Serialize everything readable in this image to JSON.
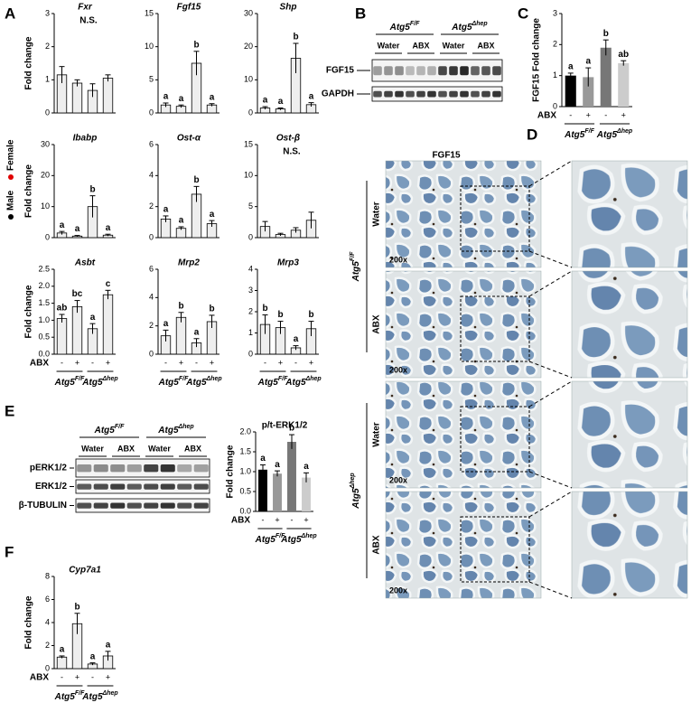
{
  "panels": [
    "A",
    "B",
    "C",
    "D",
    "E",
    "F"
  ],
  "legend": {
    "female": "Female",
    "male": "Male",
    "female_color": "#e00000",
    "male_color": "#000000"
  },
  "xaxis": {
    "abx": "ABX",
    "abx_labels": [
      "-",
      "+",
      "-",
      "+"
    ],
    "groups": [
      {
        "gene": "Atg5",
        "sup": "F/F"
      },
      {
        "gene": "Atg5",
        "sup": "Δhep"
      }
    ]
  },
  "chart_data": [
    {
      "type": "bar",
      "title": "Fxr",
      "italic": true,
      "ylabel": "Fold change",
      "ylim": [
        0,
        3
      ],
      "yticks": [
        0,
        1,
        2,
        3
      ],
      "values": [
        1.15,
        0.9,
        0.68,
        1.05
      ],
      "errors": [
        0.25,
        0.1,
        0.2,
        0.1
      ],
      "annotation": "N.S.",
      "colors": [
        "#eeeeee",
        "#eeeeee",
        "#eeeeee",
        "#eeeeee"
      ],
      "stroke": "#000000"
    },
    {
      "type": "bar",
      "title": "Fgf15",
      "italic": true,
      "ylim": [
        0,
        15
      ],
      "yticks": [
        0,
        5,
        10,
        15
      ],
      "values": [
        1.2,
        1.0,
        7.5,
        1.2
      ],
      "errors": [
        0.3,
        0.2,
        1.8,
        0.2
      ],
      "annotations": [
        "a",
        "a",
        "b",
        "a"
      ],
      "colors": [
        "#eeeeee",
        "#eeeeee",
        "#eeeeee",
        "#eeeeee"
      ],
      "stroke": "#000000"
    },
    {
      "type": "bar",
      "title": "Shp",
      "italic": true,
      "ylim": [
        0,
        30
      ],
      "yticks": [
        0,
        10,
        20,
        30
      ],
      "values": [
        1.5,
        1.2,
        16.5,
        2.5
      ],
      "errors": [
        0.4,
        0.3,
        4.5,
        0.6
      ],
      "annotations": [
        "a",
        "a",
        "b",
        "a"
      ],
      "colors": [
        "#eeeeee",
        "#eeeeee",
        "#eeeeee",
        "#eeeeee"
      ],
      "stroke": "#000000"
    },
    {
      "type": "bar",
      "title": "Ibabp",
      "italic": true,
      "ylabel": "Fold change",
      "ylim": [
        0,
        30
      ],
      "yticks": [
        0,
        10,
        20,
        30
      ],
      "values": [
        1.5,
        0.5,
        10,
        0.8
      ],
      "errors": [
        0.5,
        0.2,
        3.5,
        0.3
      ],
      "annotations": [
        "a",
        "a",
        "b",
        "a"
      ],
      "colors": [
        "#eeeeee",
        "#eeeeee",
        "#eeeeee",
        "#eeeeee"
      ],
      "stroke": "#000000"
    },
    {
      "type": "bar",
      "title": "Ost-α",
      "italic": true,
      "ylim": [
        0,
        6
      ],
      "yticks": [
        0,
        2,
        4,
        6
      ],
      "values": [
        1.2,
        0.6,
        2.8,
        0.9
      ],
      "errors": [
        0.2,
        0.1,
        0.5,
        0.2
      ],
      "annotations": [
        "a",
        "a",
        "b",
        "a"
      ],
      "colors": [
        "#eeeeee",
        "#eeeeee",
        "#eeeeee",
        "#eeeeee"
      ],
      "stroke": "#000000"
    },
    {
      "type": "bar",
      "title": "Ost-β",
      "italic": true,
      "ylim": [
        0,
        15
      ],
      "yticks": [
        0,
        5,
        10,
        15
      ],
      "values": [
        1.8,
        0.5,
        1.2,
        2.8
      ],
      "errors": [
        0.8,
        0.2,
        0.4,
        1.3
      ],
      "annotation": "N.S.",
      "colors": [
        "#eeeeee",
        "#eeeeee",
        "#eeeeee",
        "#eeeeee"
      ],
      "stroke": "#000000"
    },
    {
      "type": "bar",
      "title": "Asbt",
      "italic": true,
      "ylabel": "Fold change",
      "ylim": [
        0,
        2.5
      ],
      "yticks": [
        {
          "value": 0,
          "label": "0.0"
        },
        {
          "value": 0.5,
          "label": "0.5"
        },
        {
          "value": 1,
          "label": "1.0"
        },
        {
          "value": 1.5,
          "label": "1.5"
        },
        {
          "value": 2,
          "label": "2.0"
        },
        {
          "value": 2.5,
          "label": "2.5"
        }
      ],
      "values": [
        1.05,
        1.4,
        0.75,
        1.75
      ],
      "errors": [
        0.12,
        0.18,
        0.15,
        0.13
      ],
      "annotations": [
        "ab",
        "bc",
        "a",
        "c"
      ],
      "colors": [
        "#eeeeee",
        "#eeeeee",
        "#eeeeee",
        "#eeeeee"
      ],
      "stroke": "#000000"
    },
    {
      "type": "bar",
      "title": "Mrp2",
      "italic": true,
      "ylim": [
        0,
        6
      ],
      "yticks": [
        0,
        2,
        4,
        6
      ],
      "values": [
        1.3,
        2.6,
        0.8,
        2.3
      ],
      "errors": [
        0.4,
        0.35,
        0.3,
        0.45
      ],
      "annotations": [
        "a",
        "b",
        "a",
        "b"
      ],
      "colors": [
        "#eeeeee",
        "#eeeeee",
        "#eeeeee",
        "#eeeeee"
      ],
      "stroke": "#000000"
    },
    {
      "type": "bar",
      "title": "Mrp3",
      "italic": true,
      "ylim": [
        0,
        4
      ],
      "yticks": [
        0,
        1,
        2,
        3,
        4
      ],
      "values": [
        1.4,
        1.25,
        0.3,
        1.2
      ],
      "errors": [
        0.45,
        0.3,
        0.1,
        0.35
      ],
      "annotations": [
        "b",
        "b",
        "a",
        "b"
      ],
      "colors": [
        "#eeeeee",
        "#eeeeee",
        "#eeeeee",
        "#eeeeee"
      ],
      "stroke": "#000000"
    },
    {
      "type": "bar",
      "ylabel": "FGF15 Fold change",
      "ylim": [
        0,
        3
      ],
      "yticks": [
        0,
        1,
        2,
        3
      ],
      "values": [
        1.0,
        0.95,
        1.9,
        1.4
      ],
      "errors": [
        0.08,
        0.3,
        0.25,
        0.08
      ],
      "annotations": [
        "a",
        "a",
        "b",
        "ab"
      ],
      "colors": [
        "#000000",
        "#999999",
        "#777777",
        "#cccccc"
      ]
    },
    {
      "type": "bar",
      "title": "p/t-ERK1/2",
      "ylabel": "Fold change",
      "ylim": [
        0,
        2
      ],
      "yticks": [
        {
          "value": 0,
          "label": "0.0"
        },
        {
          "value": 0.5,
          "label": "0.5"
        },
        {
          "value": 1,
          "label": "1.0"
        },
        {
          "value": 1.5,
          "label": "1.5"
        },
        {
          "value": 2,
          "label": "2.0"
        }
      ],
      "values": [
        1.05,
        0.95,
        1.75,
        0.85
      ],
      "errors": [
        0.12,
        0.07,
        0.18,
        0.12
      ],
      "annotations": [
        "a",
        "a",
        "b",
        "a"
      ],
      "colors": [
        "#000000",
        "#999999",
        "#777777",
        "#cccccc"
      ]
    },
    {
      "type": "bar",
      "title": "Cyp7a1",
      "italic": true,
      "ylabel": "Fold change",
      "ylim": [
        0,
        8
      ],
      "yticks": [
        0,
        2,
        4,
        6,
        8
      ],
      "values": [
        1.0,
        3.9,
        0.4,
        1.1
      ],
      "errors": [
        0.1,
        0.9,
        0.1,
        0.4
      ],
      "annotations": [
        "a",
        "b",
        "a",
        "a"
      ],
      "colors": [
        "#eeeeee",
        "#eeeeee",
        "#eeeeee",
        "#eeeeee"
      ],
      "stroke": "#000000"
    }
  ],
  "blot_b": {
    "lanes": [
      "Water",
      "ABX",
      "Water",
      "ABX"
    ],
    "rows": [
      "FGF15",
      "GAPDH"
    ]
  },
  "blot_e": {
    "lanes": [
      "Water",
      "ABX",
      "Water",
      "ABX"
    ],
    "rows": [
      "pERK1/2",
      "ERK1/2",
      "β-TUBULIN"
    ]
  },
  "histology": {
    "title": "FGF15",
    "rows": [
      "Water",
      "ABX",
      "Water",
      "ABX"
    ],
    "magnification": "200x"
  }
}
